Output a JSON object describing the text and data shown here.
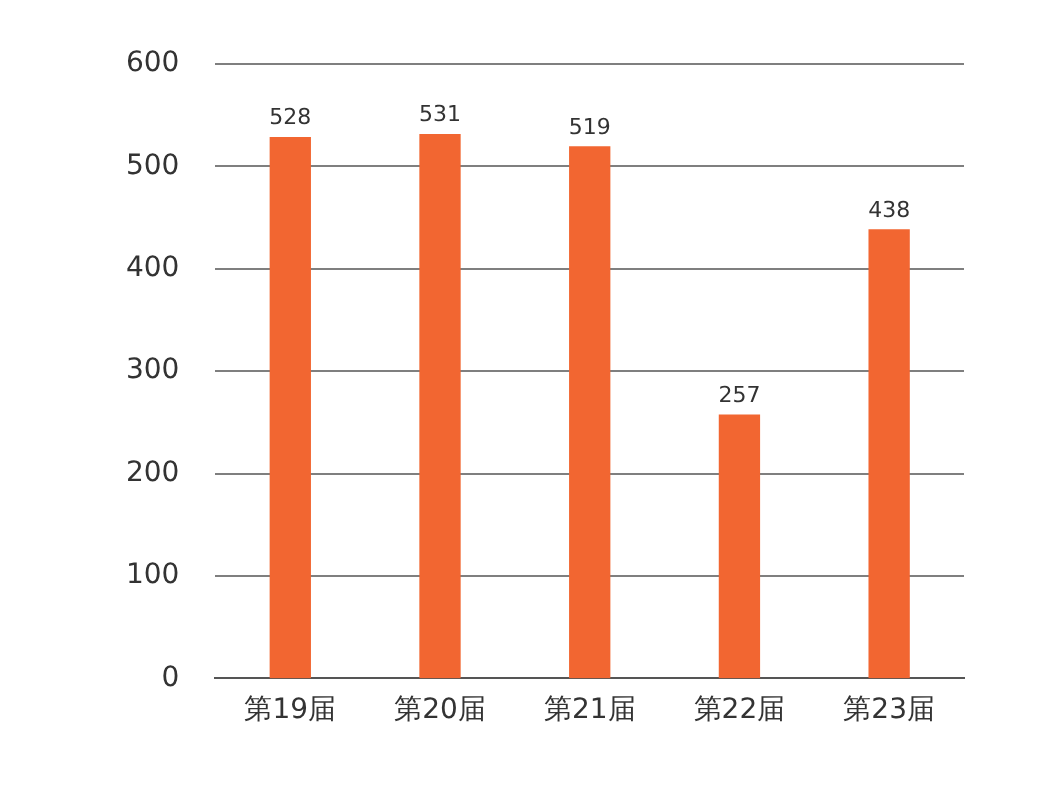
{
  "chart_data": {
    "type": "bar",
    "categories": [
      "第19届",
      "第20届",
      "第21届",
      "第22届",
      "第23届"
    ],
    "values": [
      528,
      531,
      519,
      257,
      438
    ],
    "color": "#f26631",
    "ylim": [
      0,
      600
    ],
    "yticks": [
      0,
      100,
      200,
      300,
      400,
      500,
      600
    ],
    "grid": "y",
    "data_labels": true
  }
}
